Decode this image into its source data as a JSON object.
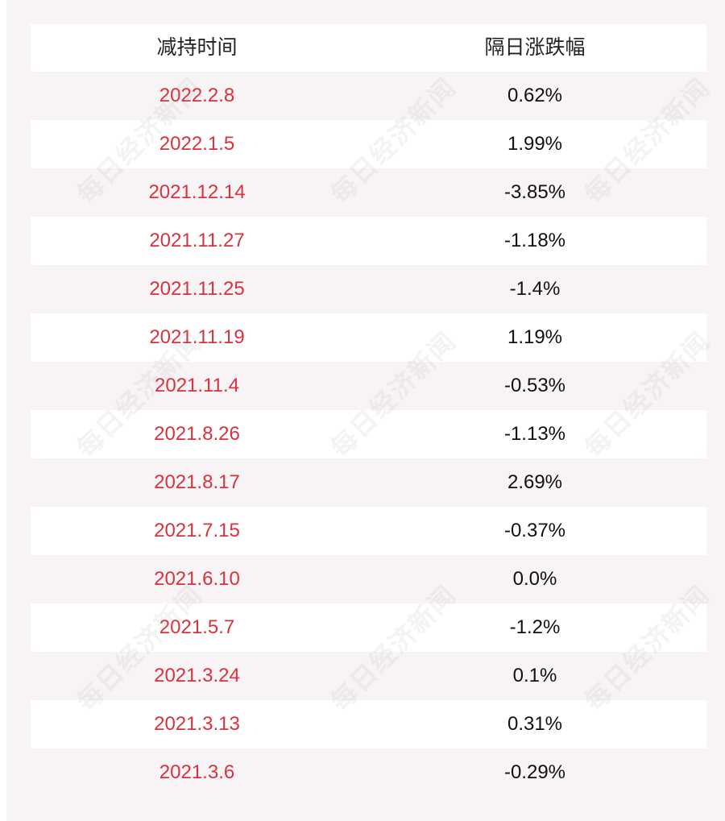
{
  "chart_data": {
    "type": "table",
    "columns": [
      "减持时间",
      "隔日涨跌幅"
    ],
    "rows": [
      [
        "2022.2.8",
        "0.62%"
      ],
      [
        "2022.1.5",
        "1.99%"
      ],
      [
        "2021.12.14",
        "-3.85%"
      ],
      [
        "2021.11.27",
        "-1.18%"
      ],
      [
        "2021.11.25",
        "-1.4%"
      ],
      [
        "2021.11.19",
        "1.19%"
      ],
      [
        "2021.11.4",
        "-0.53%"
      ],
      [
        "2021.8.26",
        "-1.13%"
      ],
      [
        "2021.8.17",
        "2.69%"
      ],
      [
        "2021.7.15",
        "-0.37%"
      ],
      [
        "2021.6.10",
        "0.0%"
      ],
      [
        "2021.5.7",
        "-1.2%"
      ],
      [
        "2021.3.24",
        "0.1%"
      ],
      [
        "2021.3.13",
        "0.31%"
      ],
      [
        "2021.3.6",
        "-0.29%"
      ]
    ]
  },
  "watermark": "每日经济新闻",
  "colors": {
    "date_text": "#d8333d",
    "value_text": "#111111",
    "background": "#f8f3f4",
    "alt_row": "#ffffff"
  }
}
